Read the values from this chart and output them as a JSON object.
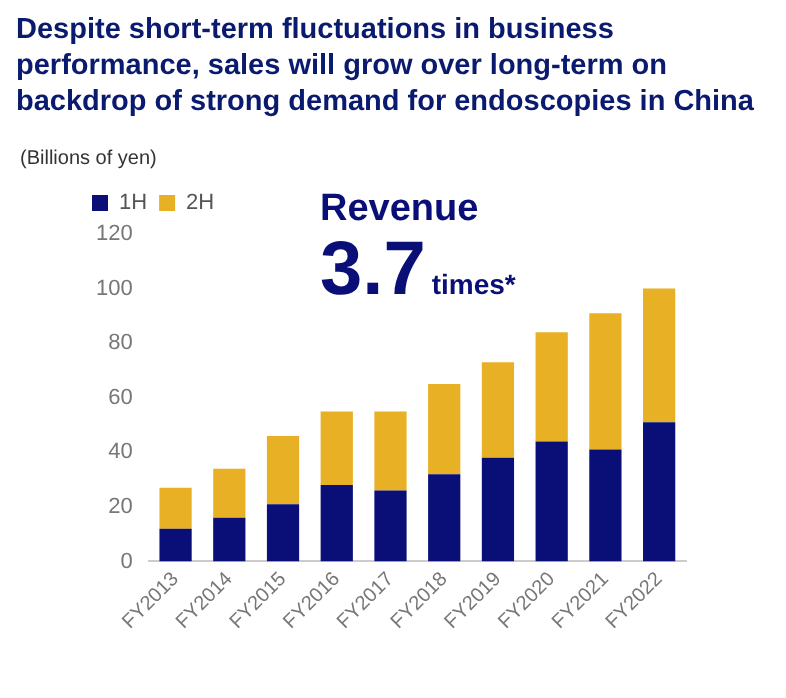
{
  "chart_data": {
    "type": "bar",
    "title": "Despite short-term fluctuations in business performance, sales will grow over long-term on backdrop of strong demand for endoscopies in China",
    "ylabel": "(Billions of yen)",
    "annotations": [
      "Revenue",
      "3.7",
      "times*"
    ],
    "categories": [
      "FY2013",
      "FY2014",
      "FY2015",
      "FY2016",
      "FY2017",
      "FY2018",
      "FY2019",
      "FY2020",
      "FY2021",
      "FY2022"
    ],
    "series": [
      {
        "name": "1H",
        "color": "#0a0f78",
        "values": [
          12,
          16,
          21,
          28,
          26,
          32,
          38,
          44,
          41,
          51
        ]
      },
      {
        "name": "2H",
        "color": "#e8b025",
        "values": [
          15,
          18,
          25,
          27,
          29,
          33,
          35,
          40,
          50,
          49
        ]
      }
    ],
    "stacked": true,
    "ylim": [
      0,
      120
    ],
    "yticks": [
      0,
      20,
      40,
      60,
      80,
      100,
      120
    ],
    "grid": false,
    "legend": "top left"
  }
}
